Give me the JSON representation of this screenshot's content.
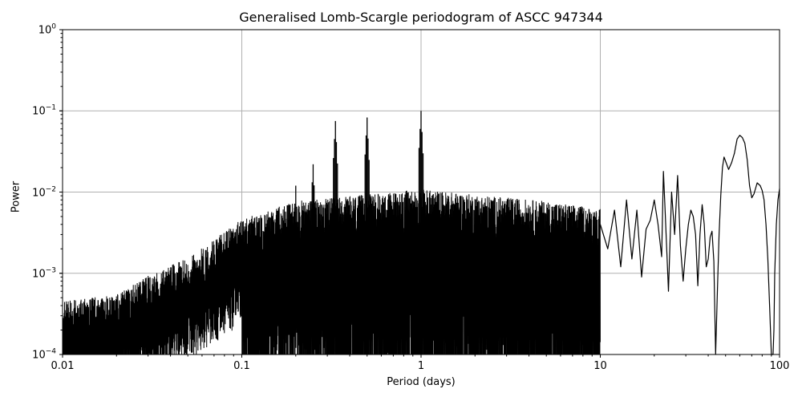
{
  "chart_data": {
    "type": "line",
    "title": "Generalised Lomb-Scargle periodogram of ASCC 947344",
    "xlabel": "Period (days)",
    "ylabel": "Power",
    "xscale": "log",
    "yscale": "log",
    "xlim": [
      0.01,
      100
    ],
    "ylim": [
      0.0001,
      1
    ],
    "grid": true,
    "x_ticks": [
      "0.01",
      "0.1",
      "1",
      "10",
      "100"
    ],
    "y_ticks": [
      {
        "base": "10",
        "exp": "0"
      },
      {
        "base": "10",
        "exp": "−1"
      },
      {
        "base": "10",
        "exp": "−2"
      },
      {
        "base": "10",
        "exp": "−3"
      },
      {
        "base": "10",
        "exp": "−4"
      }
    ],
    "line_color": "#000000",
    "grid_color": "#b0b0b0",
    "notable_peaks": [
      {
        "period": 0.2,
        "power": 0.012
      },
      {
        "period": 0.25,
        "power": 0.022
      },
      {
        "period": 0.333,
        "power": 0.075
      },
      {
        "period": 0.5,
        "power": 0.083
      },
      {
        "period": 1.0,
        "power": 0.1
      },
      {
        "period": 22.5,
        "power": 0.018
      },
      {
        "period": 27.5,
        "power": 0.016
      },
      {
        "period": 50,
        "power": 0.027
      },
      {
        "period": 60,
        "power": 0.05
      },
      {
        "period": 75,
        "power": 0.013
      },
      {
        "period": 100,
        "power": 0.011
      }
    ],
    "envelope": {
      "periods": [
        0.01,
        0.02,
        0.03,
        0.05,
        0.1,
        0.2,
        0.5,
        1,
        2,
        5,
        10,
        20
      ],
      "typical_max_power": [
        0.0003,
        0.00035,
        0.0006,
        0.001,
        0.003,
        0.005,
        0.006,
        0.007,
        0.006,
        0.005,
        0.004,
        0.006
      ]
    },
    "long_period_curve": {
      "periods": [
        10,
        11,
        12,
        13,
        14,
        15,
        16,
        17,
        18,
        19,
        20,
        21,
        22,
        22.5,
        23,
        24,
        25,
        26,
        27,
        28,
        29,
        30,
        31,
        32,
        33,
        34,
        35,
        36,
        37,
        38,
        39,
        40,
        41,
        42,
        43,
        44,
        45,
        46,
        47,
        48,
        49,
        50,
        52,
        54,
        56,
        58,
        60,
        62,
        64,
        66,
        68,
        70,
        72,
        75,
        78,
        80,
        82,
        84,
        86,
        88,
        90,
        91,
        92,
        93,
        94,
        96,
        98,
        100
      ],
      "powers": [
        0.004,
        0.002,
        0.006,
        0.0012,
        0.008,
        0.0015,
        0.006,
        0.0009,
        0.0035,
        0.0045,
        0.008,
        0.004,
        0.0016,
        0.018,
        0.006,
        0.0006,
        0.01,
        0.003,
        0.016,
        0.0022,
        0.0008,
        0.002,
        0.004,
        0.006,
        0.005,
        0.003,
        0.0007,
        0.003,
        0.007,
        0.004,
        0.0012,
        0.0015,
        0.0028,
        0.0033,
        0.0014,
        0.0001,
        0.0006,
        0.003,
        0.009,
        0.02,
        0.027,
        0.024,
        0.019,
        0.023,
        0.03,
        0.045,
        0.05,
        0.047,
        0.04,
        0.025,
        0.012,
        0.0085,
        0.0095,
        0.013,
        0.012,
        0.0105,
        0.008,
        0.004,
        0.0015,
        0.0004,
        0.0001,
        0.0001,
        0.0001,
        0.0002,
        0.001,
        0.004,
        0.008,
        0.011
      ]
    }
  },
  "figure": {
    "title": "Generalised Lomb-Scargle periodogram of ASCC 947344",
    "xlabel": "Period (days)",
    "ylabel": "Power"
  }
}
